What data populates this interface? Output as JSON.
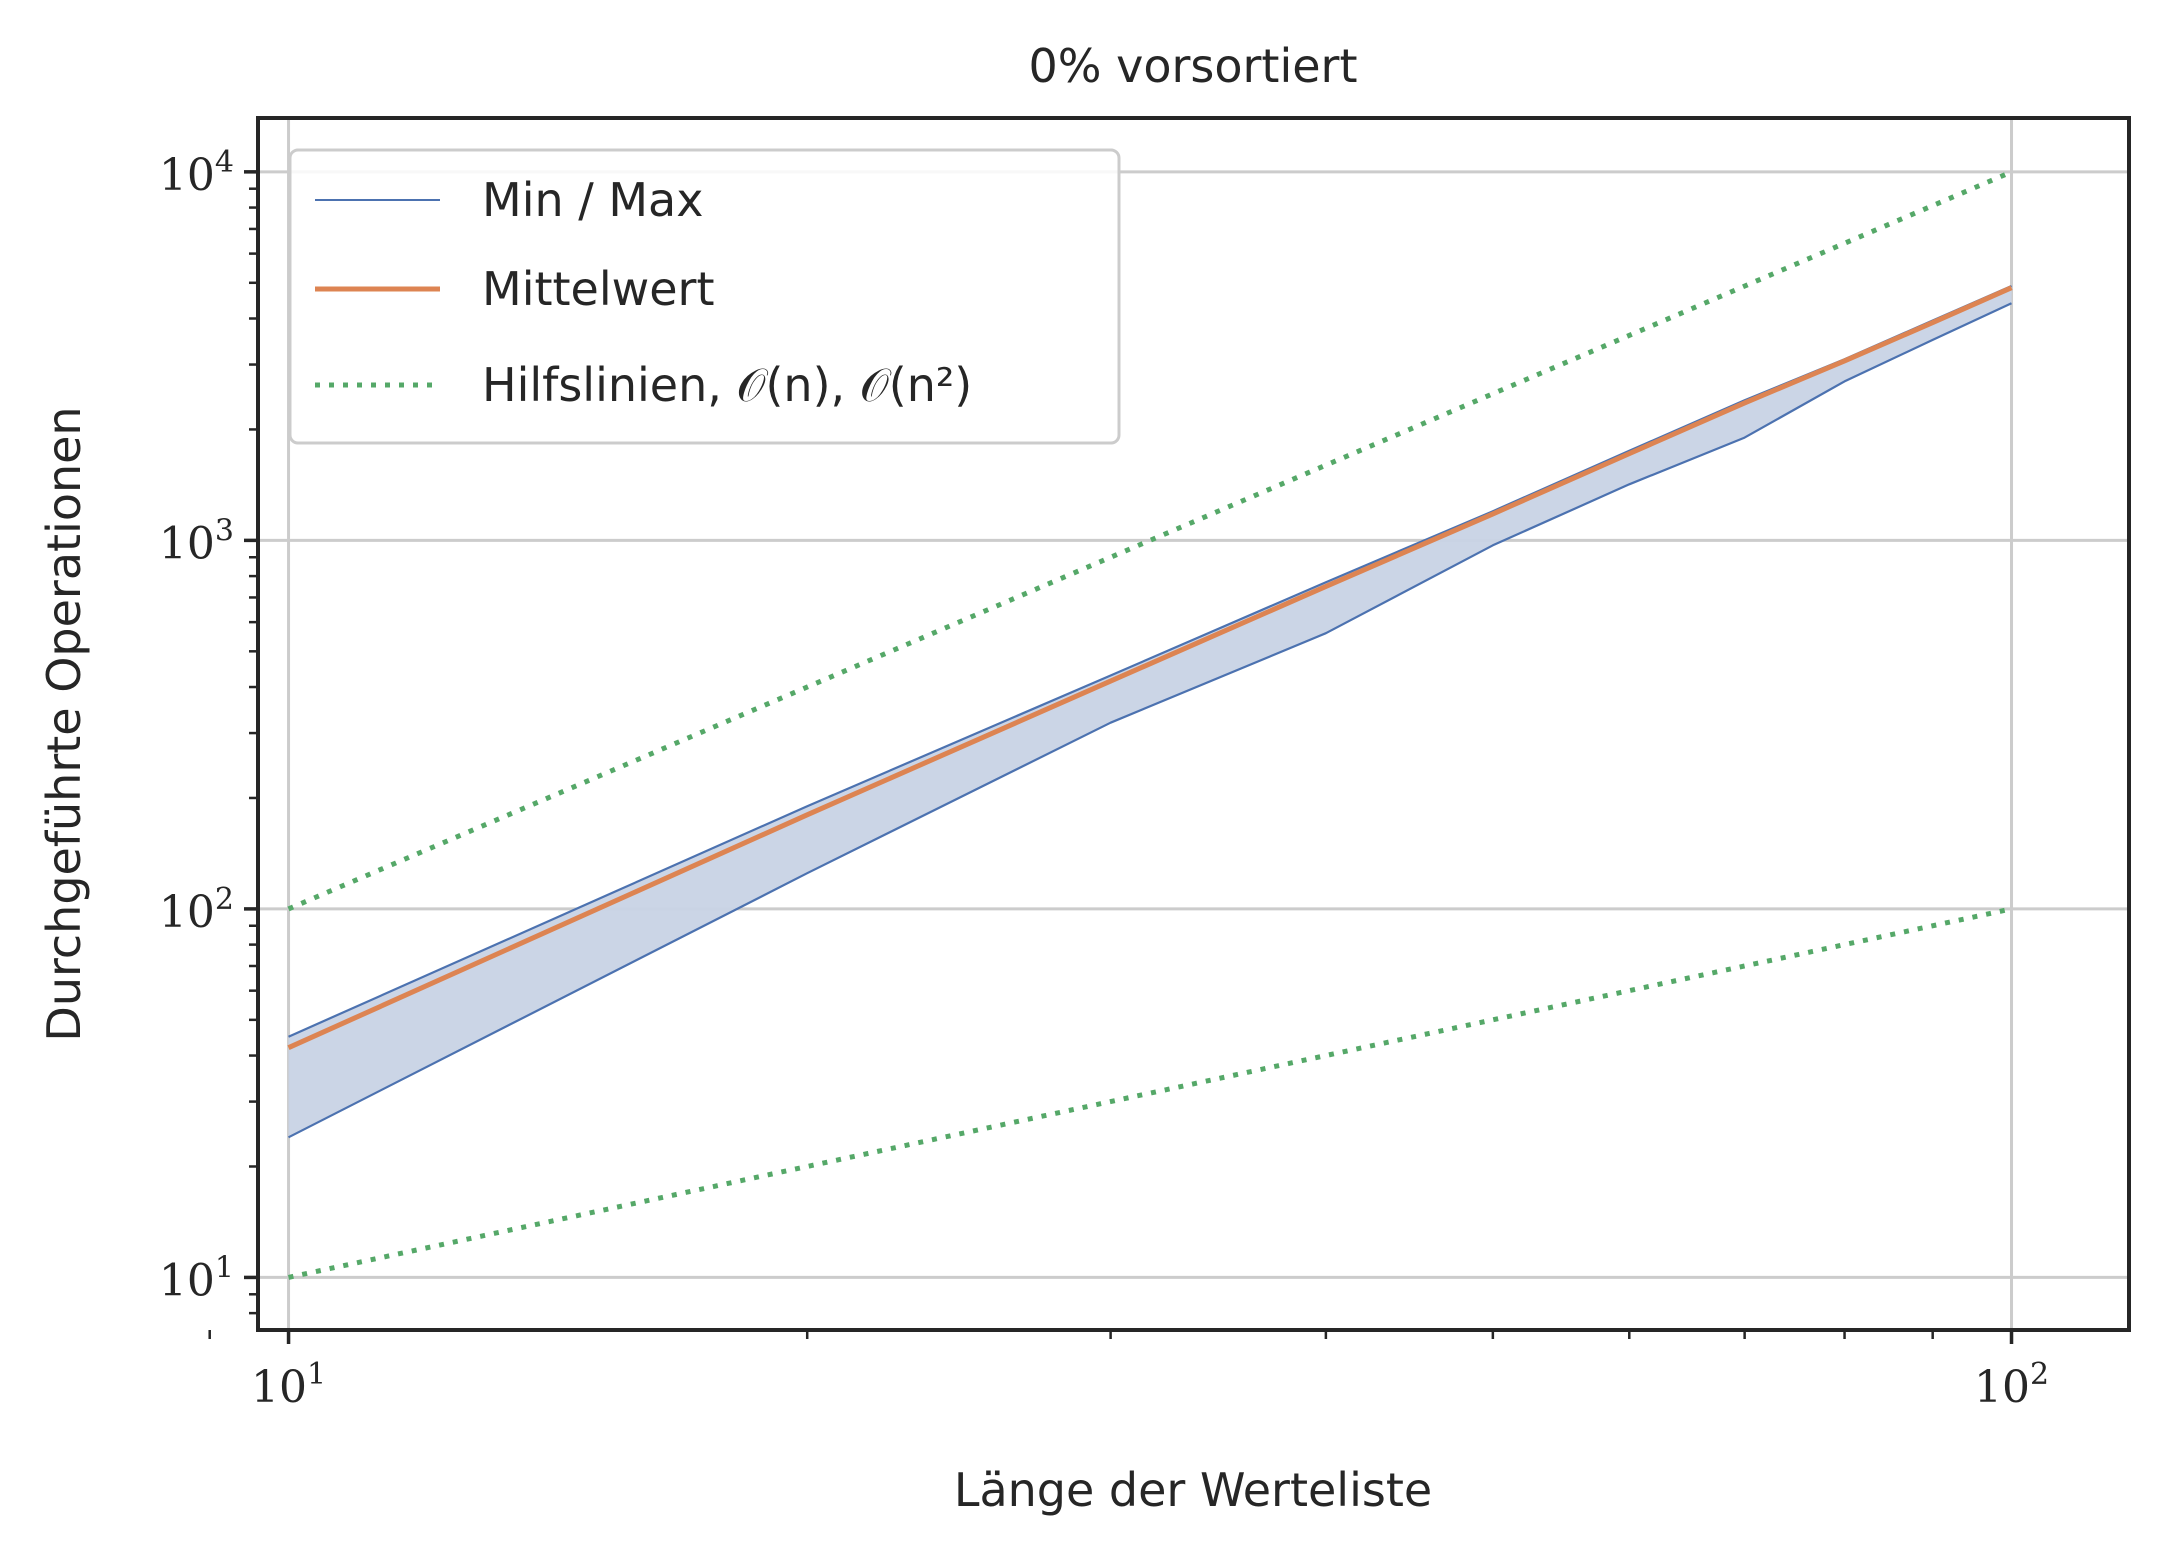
{
  "chart_data": {
    "type": "line",
    "title": "0% vorsortiert",
    "xlabel": "Länge der Werteliste",
    "ylabel": "Durchgeführte Operationen",
    "xscale": "log",
    "yscale": "log",
    "xlim": [
      9.6,
      117
    ],
    "ylim": [
      7.2,
      14000
    ],
    "grid": true,
    "legend_position": "top-left",
    "x_ticks": [
      {
        "value": 10,
        "base": "10",
        "exp": "1"
      },
      {
        "value": 100,
        "base": "10",
        "exp": "2"
      }
    ],
    "y_ticks": [
      {
        "value": 10,
        "base": "10",
        "exp": "1"
      },
      {
        "value": 100,
        "base": "10",
        "exp": "2"
      },
      {
        "value": 1000,
        "base": "10",
        "exp": "3"
      },
      {
        "value": 10000,
        "base": "10",
        "exp": "4"
      }
    ],
    "legend": [
      {
        "label": "Min / Max",
        "style": "thin",
        "color": "#4c72b0"
      },
      {
        "label": "Mittelwert",
        "style": "solid",
        "color": "#dd8452"
      },
      {
        "label": "Hilfslinien, 𝒪(n), 𝒪(n²)",
        "style": "dotted",
        "color": "#55a868"
      }
    ],
    "series": [
      {
        "name": "Min / Max",
        "role": "max",
        "color": "#4c72b0",
        "x": [
          10,
          20,
          30,
          40,
          50,
          60,
          70,
          80,
          90,
          100
        ],
        "values": [
          45,
          190,
          430,
          770,
          1200,
          1750,
          2400,
          3100,
          3950,
          4900
        ]
      },
      {
        "name": "Min / Max",
        "role": "min",
        "color": "#4c72b0",
        "x": [
          10,
          20,
          30,
          40,
          50,
          60,
          70,
          80,
          90,
          100
        ],
        "values": [
          24,
          125,
          320,
          560,
          970,
          1420,
          1900,
          2700,
          3500,
          4400
        ]
      },
      {
        "name": "Mittelwert",
        "role": "mean",
        "color": "#dd8452",
        "x": [
          10,
          20,
          30,
          40,
          50,
          60,
          70,
          80,
          90,
          100
        ],
        "values": [
          42,
          180,
          415,
          750,
          1180,
          1720,
          2360,
          3070,
          3900,
          4850
        ]
      },
      {
        "name": "Hilfslinien, 𝒪(n), 𝒪(n²)",
        "role": "guide-n2",
        "color": "#55a868",
        "x": [
          10,
          100
        ],
        "values": [
          100,
          10000
        ]
      },
      {
        "name": "Hilfslinien, 𝒪(n), 𝒪(n²)",
        "role": "guide-n",
        "color": "#55a868",
        "x": [
          10,
          100
        ],
        "values": [
          10,
          100
        ]
      }
    ],
    "fill_color": "#c8d3e5"
  }
}
